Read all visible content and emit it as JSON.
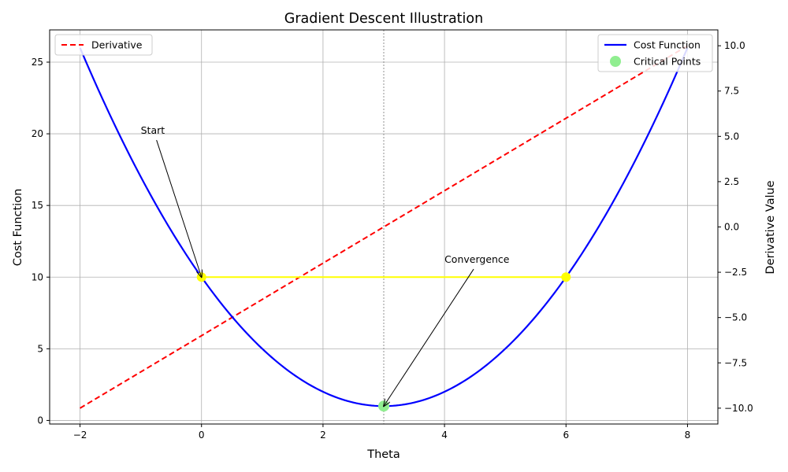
{
  "chart_data": {
    "type": "line",
    "title": "Gradient Descent Illustration",
    "xlabel": "Theta",
    "ylabel_left": "Cost Function",
    "ylabel_right": "Derivative Value",
    "xlim": [
      -2.5,
      8.5
    ],
    "ylim_left": [
      -0.25,
      27.25
    ],
    "ylim_right": [
      -10.875,
      10.875
    ],
    "x_ticks": [
      -2,
      0,
      2,
      4,
      6,
      8
    ],
    "y_ticks_left": [
      0,
      5,
      10,
      15,
      20,
      25
    ],
    "y_ticks_right": [
      -10.0,
      -7.5,
      -5.0,
      -2.5,
      0.0,
      2.5,
      5.0,
      7.5,
      10.0
    ],
    "x_tick_labels": [
      "−2",
      "0",
      "2",
      "4",
      "6",
      "8"
    ],
    "y_tick_labels_left": [
      "0",
      "5",
      "10",
      "15",
      "20",
      "25"
    ],
    "y_tick_labels_right": [
      "−10.0",
      "−7.5",
      "−5.0",
      "−2.5",
      "0.0",
      "2.5",
      "5.0",
      "7.5",
      "10.0"
    ],
    "grid": true,
    "vertical_reference_line": {
      "x": 3,
      "style": "dashed",
      "color": "#777777"
    },
    "series": [
      {
        "name": "Cost Function",
        "axis": "left",
        "color": "#0000ff",
        "style": "solid",
        "x": [
          -2,
          -1.5,
          -1,
          -0.5,
          0,
          0.5,
          1,
          1.5,
          2,
          2.5,
          3,
          3.5,
          4,
          4.5,
          5,
          5.5,
          6,
          6.5,
          7,
          7.5,
          8
        ],
        "y": [
          26,
          21.25,
          17,
          13.25,
          10,
          7.25,
          5,
          3.25,
          2,
          1.25,
          1,
          1.25,
          2,
          3.25,
          5,
          7.25,
          10,
          13.25,
          17,
          21.25,
          26
        ]
      },
      {
        "name": "Derivative",
        "axis": "right",
        "color": "#ff0000",
        "style": "dashed",
        "x": [
          -2,
          8
        ],
        "y": [
          -10,
          10
        ]
      }
    ],
    "highlight_segment": {
      "x": [
        0,
        6
      ],
      "y": [
        10,
        10
      ],
      "color": "#ffff00"
    },
    "markers": [
      {
        "x": 0,
        "y": 10,
        "color": "#ffff00"
      },
      {
        "x": 6,
        "y": 10,
        "color": "#ffff00"
      }
    ],
    "critical_points": {
      "name": "Critical Points",
      "color": "#90ee90",
      "x": [
        3
      ],
      "y": [
        1
      ]
    },
    "annotations": [
      {
        "text": "Start",
        "text_x": -1,
        "text_y": 20,
        "arrow_x": 0,
        "arrow_y": 10
      },
      {
        "text": "Convergence",
        "text_x": 4,
        "text_y": 11,
        "arrow_x": 3,
        "arrow_y": 1
      }
    ],
    "legend_left": {
      "location": "upper-left",
      "entries": [
        "Derivative"
      ]
    },
    "legend_right": {
      "location": "upper-right",
      "entries": [
        "Cost Function",
        "Critical Points"
      ]
    }
  }
}
